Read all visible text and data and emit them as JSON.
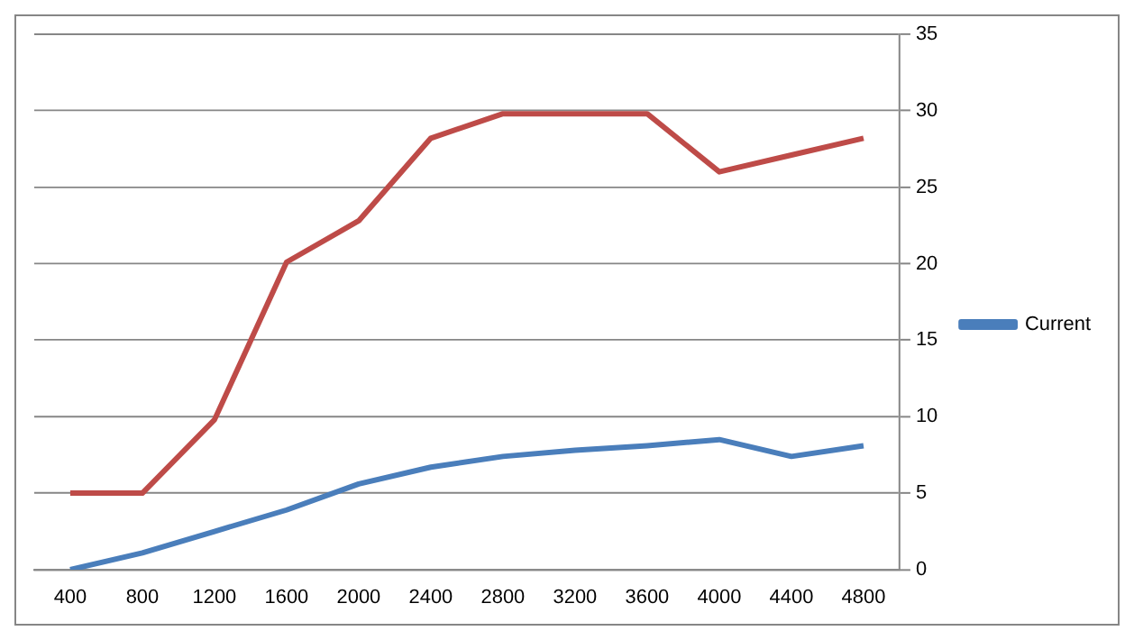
{
  "chart_data": {
    "type": "line",
    "categories": [
      "400",
      "800",
      "1200",
      "1600",
      "2000",
      "2400",
      "2800",
      "3200",
      "3600",
      "4000",
      "4400",
      "4800"
    ],
    "series": [
      {
        "name": "Current",
        "color": "#4a7ebb",
        "values": [
          0,
          1.1,
          2.5,
          3.9,
          5.6,
          6.7,
          7.4,
          7.8,
          8.1,
          8.5,
          7.4,
          8.1
        ]
      },
      {
        "color": "#be4b48",
        "values": [
          5,
          5,
          9.8,
          20.1,
          22.8,
          28.2,
          29.8,
          29.8,
          29.8,
          26,
          27.1,
          28.2
        ]
      }
    ],
    "ylim": [
      0,
      35
    ],
    "yticks": [
      0,
      5,
      10,
      15,
      20,
      25,
      30,
      35
    ],
    "grid": "y",
    "legend": "right",
    "marker": "none",
    "line_style": "solid"
  }
}
